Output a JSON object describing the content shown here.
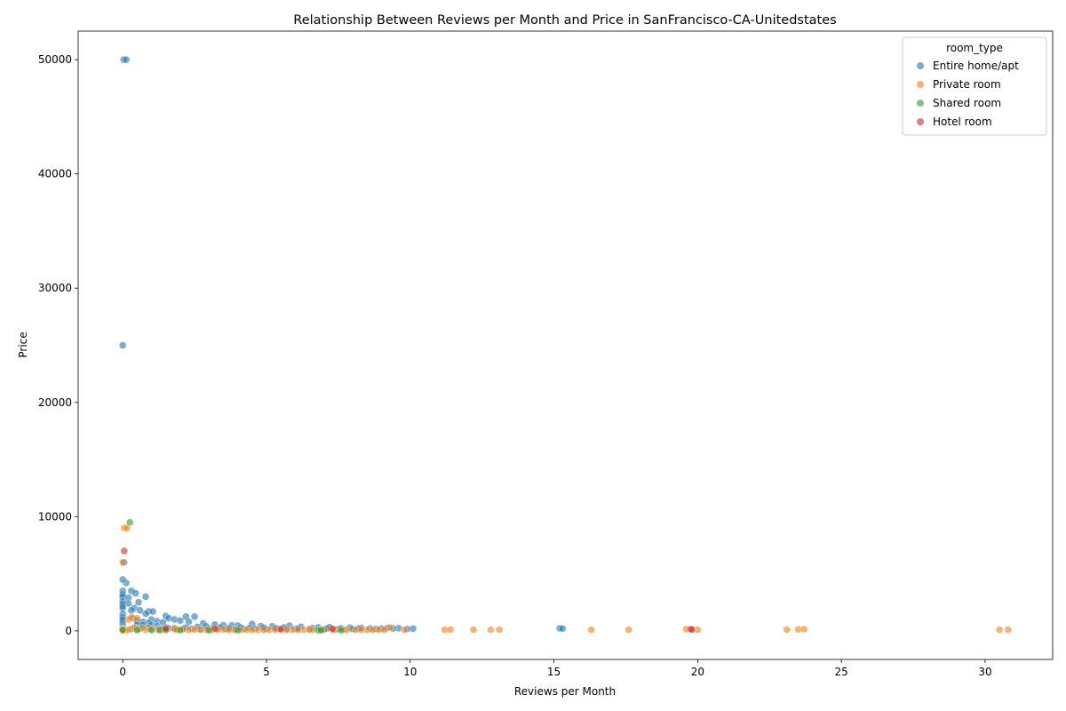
{
  "chart_data": {
    "type": "scatter",
    "title": "Relationship Between Reviews per Month and Price in SanFrancisco-CA-Unitedstates",
    "xlabel": "Reviews per Month",
    "ylabel": "Price",
    "xlim": [
      -1.55,
      32.35
    ],
    "ylim": [
      -2500,
      52500
    ],
    "xticks": [
      0,
      5,
      10,
      15,
      20,
      25,
      30
    ],
    "yticks": [
      0,
      10000,
      20000,
      30000,
      40000,
      50000
    ],
    "grid": false,
    "legend": {
      "title": "room_type",
      "placement": "top-right"
    },
    "series": [
      {
        "name": "Entire home/apt",
        "color": "#1f77b4",
        "points": [
          [
            0.03,
            50000
          ],
          [
            0.12,
            50000
          ],
          [
            0.0,
            25000
          ],
          [
            0.05,
            6000
          ],
          [
            0.12,
            4200
          ],
          [
            0.0,
            4500
          ],
          [
            0.3,
            3500
          ],
          [
            0.0,
            3500
          ],
          [
            0.45,
            3300
          ],
          [
            0.0,
            3200
          ],
          [
            0.8,
            3000
          ],
          [
            0.0,
            3000
          ],
          [
            0.2,
            2900
          ],
          [
            0.0,
            2600
          ],
          [
            0.55,
            2500
          ],
          [
            0.0,
            2400
          ],
          [
            0.2,
            2400
          ],
          [
            0.0,
            2200
          ],
          [
            0.4,
            2000
          ],
          [
            0.0,
            2000
          ],
          [
            0.6,
            1800
          ],
          [
            0.3,
            1800
          ],
          [
            0.9,
            1700
          ],
          [
            1.05,
            1700
          ],
          [
            0.8,
            1500
          ],
          [
            0.0,
            1500
          ],
          [
            1.5,
            1300
          ],
          [
            2.2,
            1250
          ],
          [
            2.5,
            1250
          ],
          [
            1.6,
            1100
          ],
          [
            0.35,
            1100
          ],
          [
            1.8,
            1000
          ],
          [
            1.0,
            1000
          ],
          [
            2.0,
            900
          ],
          [
            0.5,
            900
          ],
          [
            1.2,
            850
          ],
          [
            0.7,
            800
          ],
          [
            2.3,
            800
          ],
          [
            1.4,
            750
          ],
          [
            2.8,
            650
          ],
          [
            0.9,
            700
          ],
          [
            3.2,
            550
          ],
          [
            3.5,
            500
          ],
          [
            3.8,
            480
          ],
          [
            4.0,
            460
          ],
          [
            4.5,
            600
          ],
          [
            4.8,
            420
          ],
          [
            5.2,
            400
          ],
          [
            5.8,
            450
          ],
          [
            6.2,
            350
          ],
          [
            6.8,
            300
          ],
          [
            7.2,
            320
          ],
          [
            7.9,
            280
          ],
          [
            8.3,
            260
          ],
          [
            9.2,
            250
          ],
          [
            9.6,
            230
          ],
          [
            10.1,
            200
          ],
          [
            15.2,
            220
          ],
          [
            15.3,
            200
          ],
          [
            0.0,
            800
          ],
          [
            0.0,
            1200
          ],
          [
            0.0,
            1000
          ],
          [
            0.0,
            600
          ],
          [
            0.0,
            400
          ],
          [
            0.0,
            300
          ],
          [
            0.0,
            200
          ],
          [
            0.0,
            150
          ],
          [
            0.0,
            100
          ],
          [
            0.5,
            600
          ],
          [
            0.7,
            500
          ],
          [
            1.0,
            500
          ],
          [
            1.2,
            400
          ],
          [
            1.5,
            300
          ],
          [
            1.8,
            250
          ],
          [
            2.1,
            200
          ],
          [
            2.4,
            180
          ],
          [
            2.7,
            150
          ],
          [
            3.0,
            200
          ],
          [
            3.3,
            180
          ],
          [
            3.6,
            160
          ],
          [
            3.9,
            150
          ],
          [
            4.2,
            170
          ],
          [
            4.6,
            200
          ],
          [
            5.0,
            150
          ],
          [
            5.4,
            180
          ],
          [
            5.7,
            200
          ],
          [
            6.0,
            160
          ],
          [
            6.5,
            180
          ],
          [
            7.0,
            150
          ],
          [
            7.5,
            160
          ],
          [
            8.0,
            150
          ],
          [
            8.8,
            170
          ],
          [
            9.9,
            160
          ],
          [
            0.3,
            150
          ],
          [
            0.6,
            200
          ],
          [
            0.9,
            250
          ],
          [
            1.3,
            180
          ],
          [
            1.6,
            220
          ],
          [
            1.9,
            150
          ],
          [
            2.2,
            300
          ],
          [
            2.6,
            350
          ],
          [
            2.9,
            400
          ],
          [
            3.4,
            300
          ],
          [
            3.7,
            250
          ],
          [
            4.1,
            300
          ],
          [
            4.4,
            250
          ],
          [
            4.9,
            300
          ],
          [
            5.3,
            250
          ],
          [
            5.6,
            300
          ],
          [
            6.1,
            220
          ],
          [
            6.6,
            250
          ],
          [
            7.1,
            200
          ],
          [
            7.6,
            220
          ],
          [
            8.2,
            200
          ],
          [
            8.6,
            210
          ],
          [
            9.0,
            200
          ],
          [
            9.4,
            210
          ]
        ]
      },
      {
        "name": "Private room",
        "color": "#ff7f0e",
        "points": [
          [
            0.05,
            9000
          ],
          [
            0.15,
            9000
          ],
          [
            0.0,
            6000
          ],
          [
            0.3,
            1200
          ],
          [
            0.5,
            1100
          ],
          [
            0.2,
            1000
          ],
          [
            0.0,
            150
          ],
          [
            0.0,
            100
          ],
          [
            0.2,
            120
          ],
          [
            0.5,
            100
          ],
          [
            0.8,
            90
          ],
          [
            1.2,
            110
          ],
          [
            1.5,
            95
          ],
          [
            1.9,
            100
          ],
          [
            2.3,
            85
          ],
          [
            2.7,
            100
          ],
          [
            3.1,
            90
          ],
          [
            3.5,
            110
          ],
          [
            3.9,
            95
          ],
          [
            4.3,
            100
          ],
          [
            4.7,
            90
          ],
          [
            5.1,
            100
          ],
          [
            5.5,
            95
          ],
          [
            5.9,
            110
          ],
          [
            6.3,
            100
          ],
          [
            6.6,
            95
          ],
          [
            7.0,
            100
          ],
          [
            7.4,
            110
          ],
          [
            7.8,
            95
          ],
          [
            8.1,
            100
          ],
          [
            8.5,
            105
          ],
          [
            8.9,
            110
          ],
          [
            9.3,
            300
          ],
          [
            9.8,
            100
          ],
          [
            11.2,
            100
          ],
          [
            11.4,
            120
          ],
          [
            12.2,
            110
          ],
          [
            12.8,
            100
          ],
          [
            13.1,
            110
          ],
          [
            16.3,
            100
          ],
          [
            17.6,
            100
          ],
          [
            19.6,
            150
          ],
          [
            20.0,
            100
          ],
          [
            23.1,
            120
          ],
          [
            23.5,
            130
          ],
          [
            23.7,
            150
          ],
          [
            30.5,
            100
          ],
          [
            30.8,
            110
          ],
          [
            0.4,
            300
          ],
          [
            0.7,
            250
          ],
          [
            1.0,
            200
          ],
          [
            1.4,
            180
          ],
          [
            1.8,
            160
          ],
          [
            2.1,
            140
          ],
          [
            2.5,
            120
          ],
          [
            2.9,
            110
          ],
          [
            3.3,
            100
          ],
          [
            3.7,
            95
          ],
          [
            4.1,
            90
          ],
          [
            4.5,
            85
          ],
          [
            4.9,
            90
          ],
          [
            5.3,
            95
          ],
          [
            5.7,
            85
          ],
          [
            6.1,
            90
          ],
          [
            6.5,
            100
          ],
          [
            6.9,
            90
          ],
          [
            7.3,
            85
          ],
          [
            7.7,
            95
          ],
          [
            8.3,
            90
          ],
          [
            8.7,
            100
          ],
          [
            9.1,
            95
          ],
          [
            0.1,
            50
          ],
          [
            0.0,
            0
          ]
        ]
      },
      {
        "name": "Shared room",
        "color": "#2ca02c",
        "points": [
          [
            0.25,
            9500
          ],
          [
            0.0,
            100
          ],
          [
            1.0,
            60
          ],
          [
            1.3,
            50
          ],
          [
            1.5,
            70
          ],
          [
            4.0,
            60
          ],
          [
            6.8,
            50
          ],
          [
            6.9,
            60
          ],
          [
            7.6,
            55
          ],
          [
            0.5,
            80
          ],
          [
            2.0,
            60
          ],
          [
            3.0,
            50
          ]
        ]
      },
      {
        "name": "Hotel room",
        "color": "#d62728",
        "points": [
          [
            0.05,
            7000
          ],
          [
            19.75,
            150
          ],
          [
            19.8,
            120
          ],
          [
            7.3,
            180
          ],
          [
            3.2,
            200
          ],
          [
            5.5,
            150
          ],
          [
            1.5,
            200
          ]
        ]
      }
    ]
  }
}
